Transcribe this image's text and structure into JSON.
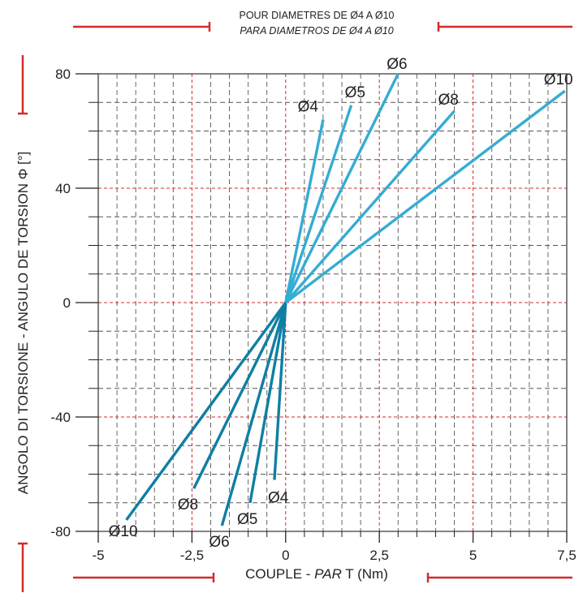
{
  "header": {
    "line1": "POUR DIAMETRES DE Ø4 A Ø10",
    "line2": "PARA DIAMETROS DE Ø4 A Ø10"
  },
  "xaxis": {
    "label_main": "COUPLE - ",
    "label_italic": "PAR",
    "label_tail": " T (Nm)"
  },
  "yaxis": {
    "label": "ANGOLO DI TORSIONE - ANGULO DE TORSION Φ [°]"
  },
  "colors": {
    "positive": "#35acd3",
    "negative": "#0f7fa3",
    "accent": "#d42b2b",
    "grid": "#555555"
  },
  "chart_data": {
    "type": "line",
    "title": "POUR DIAMETRES DE Ø4 A Ø10 / PARA DIAMETROS DE Ø4 A Ø10",
    "xlabel": "COUPLE - PAR T (Nm)",
    "ylabel": "ANGOLO DI TORSIONE - ANGULO DE TORSION Φ [°]",
    "xlim": [
      -5,
      7.5
    ],
    "ylim": [
      -80,
      80
    ],
    "xticks": [
      "-5",
      "-2,5",
      "0",
      "2,5",
      "5",
      "7,5"
    ],
    "yticks": [
      "80",
      "40",
      "0",
      "-40",
      "-80"
    ],
    "grid": true,
    "series": [
      {
        "name": "Ø4",
        "x": [
          -0.3,
          0,
          1.0
        ],
        "y": [
          -62,
          0,
          64
        ]
      },
      {
        "name": "Ø5",
        "x": [
          -0.95,
          0,
          1.75
        ],
        "y": [
          -70,
          0,
          69
        ]
      },
      {
        "name": "Ø6",
        "x": [
          -1.7,
          0,
          3.0
        ],
        "y": [
          -78,
          0,
          80
        ]
      },
      {
        "name": "Ø8",
        "x": [
          -2.45,
          0,
          4.5
        ],
        "y": [
          -65,
          0,
          67
        ]
      },
      {
        "name": "Ø10",
        "x": [
          -4.25,
          0,
          7.45
        ],
        "y": [
          -76,
          0,
          74
        ]
      }
    ]
  }
}
